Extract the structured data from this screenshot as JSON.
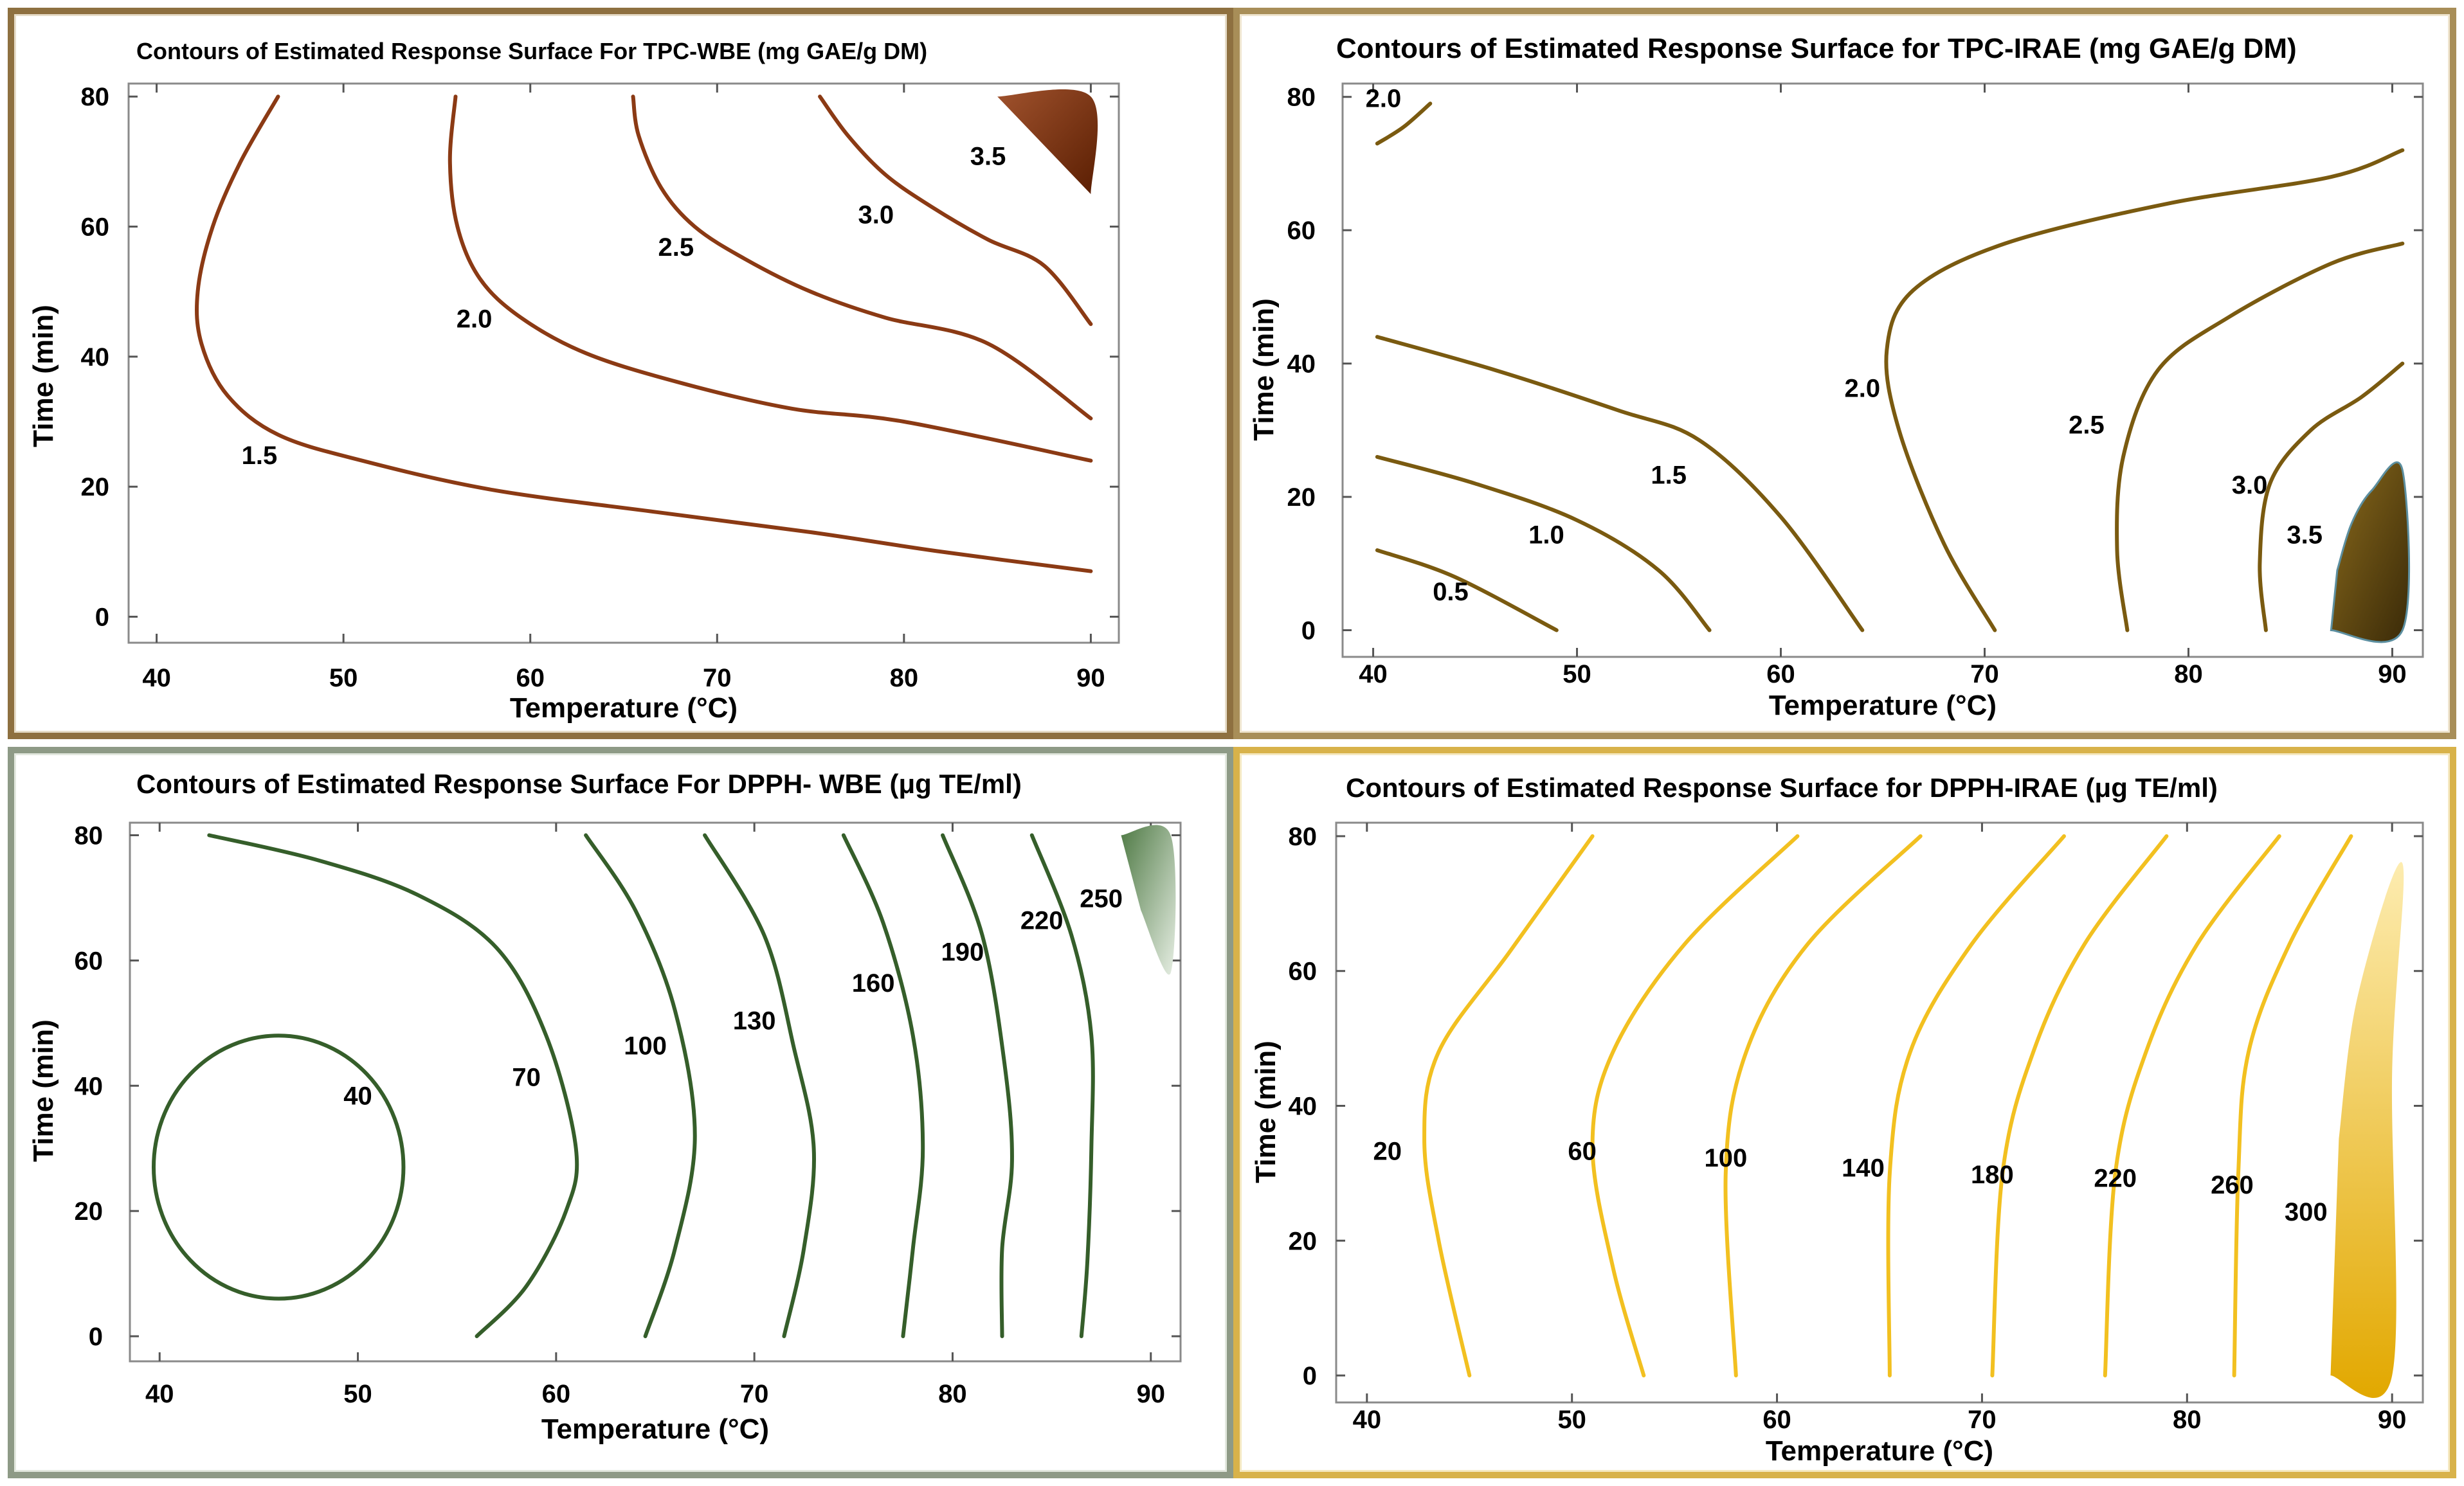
{
  "chart_data": [
    {
      "type": "contour",
      "title": "Contours of Estimated Response Surface For TPC-WBE (mg GAE/g DM)",
      "xlabel": "Temperature (°C)",
      "ylabel": "Time (min)",
      "xlim": [
        38.5,
        91.5
      ],
      "ylim": [
        -4,
        82
      ],
      "xticks": [
        "40",
        "50",
        "60",
        "70",
        "80",
        "90"
      ],
      "yticks": [
        "0",
        "20",
        "40",
        "60",
        "80"
      ],
      "color": "#8B3A14",
      "fill_colors": [
        "#A0522D",
        "#5A1E02"
      ],
      "region": {
        "label": "3.5",
        "points": [
          [
            85,
            80
          ],
          [
            90,
            80
          ],
          [
            90,
            65
          ]
        ]
      },
      "contours": [
        {
          "label": "1.5",
          "label_at": [
            45.5,
            23.5
          ],
          "points": [
            [
              46.5,
              80
            ],
            [
              44.5,
              70
            ],
            [
              43,
              60
            ],
            [
              42.2,
              50
            ],
            [
              42.4,
              42
            ],
            [
              43.8,
              34
            ],
            [
              46.5,
              28
            ],
            [
              51,
              24
            ],
            [
              58,
              19.5
            ],
            [
              67,
              16
            ],
            [
              75,
              13
            ],
            [
              82,
              10
            ],
            [
              90,
              7
            ]
          ]
        },
        {
          "label": "2.0",
          "label_at": [
            57,
            44.5
          ],
          "points": [
            [
              56,
              80
            ],
            [
              55.7,
              70
            ],
            [
              56.1,
              60
            ],
            [
              57.3,
              52
            ],
            [
              59.5,
              46
            ],
            [
              63,
              40.5
            ],
            [
              68,
              36
            ],
            [
              74,
              32
            ],
            [
              80,
              30
            ],
            [
              90,
              24
            ]
          ]
        },
        {
          "label": "2.5",
          "label_at": [
            67.8,
            55.5
          ],
          "points": [
            [
              65.5,
              80
            ],
            [
              65.8,
              74
            ],
            [
              67,
              66
            ],
            [
              68.8,
              60
            ],
            [
              71.5,
              55
            ],
            [
              75,
              50
            ],
            [
              79,
              46
            ],
            [
              84.5,
              42
            ],
            [
              90,
              30.5
            ]
          ]
        },
        {
          "label": "3.0",
          "label_at": [
            78.5,
            60.5
          ],
          "points": [
            [
              75.5,
              80
            ],
            [
              77,
              74
            ],
            [
              79,
              68
            ],
            [
              81.5,
              63
            ],
            [
              84.5,
              58
            ],
            [
              87.5,
              54
            ],
            [
              90,
              45
            ]
          ]
        }
      ]
    },
    {
      "type": "contour",
      "title": "Contours of Estimated Response Surface for TPC-IRAE (mg GAE/g DM)",
      "xlabel": "Temperature (°C)",
      "ylabel": "Time (min)",
      "xlim": [
        38.5,
        91.5
      ],
      "ylim": [
        -4,
        82
      ],
      "xticks": [
        "40",
        "50",
        "60",
        "70",
        "80",
        "90"
      ],
      "yticks": [
        "0",
        "20",
        "40",
        "60",
        "80"
      ],
      "color": "#7A5A10",
      "fill_colors": [
        "#8A6A1C",
        "#3A2A08"
      ],
      "region": {
        "label": "3.5",
        "points": [
          [
            87,
            0
          ],
          [
            90.5,
            0
          ],
          [
            90.5,
            24
          ],
          [
            89,
            21
          ],
          [
            88,
            16
          ],
          [
            87.3,
            9
          ]
        ]
      },
      "contours": [
        {
          "label": "2.0",
          "label_at": [
            40.5,
            78.5
          ],
          "points": [
            [
              40.2,
              73
            ],
            [
              41.5,
              75.5
            ],
            [
              42.8,
              79
            ]
          ]
        },
        {
          "label": "0.5",
          "label_at": [
            43.8,
            4.5
          ],
          "points": [
            [
              40.2,
              12
            ],
            [
              44,
              8
            ],
            [
              49,
              0
            ]
          ]
        },
        {
          "label": "1.0",
          "label_at": [
            48.5,
            13
          ],
          "points": [
            [
              40.2,
              26
            ],
            [
              45,
              22
            ],
            [
              50,
              16.5
            ],
            [
              54,
              9
            ],
            [
              56.5,
              0
            ]
          ]
        },
        {
          "label": "1.5",
          "label_at": [
            54.5,
            22
          ],
          "points": [
            [
              40.2,
              44
            ],
            [
              46,
              39
            ],
            [
              52,
              33
            ],
            [
              56,
              28.5
            ],
            [
              60,
              17
            ],
            [
              64,
              0
            ]
          ]
        },
        {
          "label": "2.0",
          "label_at": [
            64,
            35
          ],
          "points": [
            [
              70.5,
              0
            ],
            [
              68,
              13
            ],
            [
              65.8,
              30
            ],
            [
              65.2,
              42
            ],
            [
              66.5,
              51
            ],
            [
              71,
              58
            ],
            [
              79,
              64
            ],
            [
              87,
              68
            ],
            [
              90.5,
              72
            ]
          ]
        },
        {
          "label": "2.5",
          "label_at": [
            75,
            29.5
          ],
          "points": [
            [
              77,
              0
            ],
            [
              76.5,
              12
            ],
            [
              76.8,
              26
            ],
            [
              78.5,
              39
            ],
            [
              82,
              47
            ],
            [
              87,
              55
            ],
            [
              90.5,
              58
            ]
          ]
        },
        {
          "label": "3.0",
          "label_at": [
            83,
            20.5
          ],
          "points": [
            [
              83.8,
              0
            ],
            [
              83.5,
              10
            ],
            [
              84,
              22
            ],
            [
              86,
              30
            ],
            [
              88.5,
              35
            ],
            [
              90.5,
              40
            ]
          ]
        }
      ]
    },
    {
      "type": "contour",
      "title": "Contours of Estimated Response Surface For DPPH- WBE (μg TE/ml)",
      "xlabel": "Temperature (°C)",
      "ylabel": "Time (min)",
      "xlim": [
        38.5,
        91.5
      ],
      "ylim": [
        -4,
        82
      ],
      "xticks": [
        "40",
        "50",
        "60",
        "70",
        "80",
        "90"
      ],
      "yticks": [
        "0",
        "20",
        "40",
        "60",
        "80"
      ],
      "color": "#355E2A",
      "fill_colors": [
        "#4F7A45",
        "#E6EEE3"
      ],
      "region": {
        "label": "250",
        "points": [
          [
            88.5,
            80
          ],
          [
            91,
            80
          ],
          [
            91,
            58
          ],
          [
            89.5,
            68
          ]
        ]
      },
      "circle": {
        "label": "40",
        "label_at": [
          50,
          37
        ],
        "center": [
          46,
          27
        ],
        "rx": 6.3,
        "ry": 21
      },
      "contours": [
        {
          "label": "70",
          "label_at": [
            58.5,
            40
          ],
          "points": [
            [
              42.5,
              80
            ],
            [
              48,
              76
            ],
            [
              53,
              70.5
            ],
            [
              57,
              62
            ],
            [
              59.5,
              48
            ],
            [
              61,
              30
            ],
            [
              60.5,
              20
            ],
            [
              58.5,
              8
            ],
            [
              56,
              0
            ]
          ]
        },
        {
          "label": "100",
          "label_at": [
            64.5,
            45
          ],
          "points": [
            [
              61.5,
              80
            ],
            [
              64,
              68
            ],
            [
              66,
              52
            ],
            [
              67,
              32
            ],
            [
              66,
              14
            ],
            [
              64.5,
              0
            ]
          ]
        },
        {
          "label": "130",
          "label_at": [
            70,
            49
          ],
          "points": [
            [
              67.5,
              80
            ],
            [
              70.5,
              64
            ],
            [
              72,
              46
            ],
            [
              73,
              30
            ],
            [
              72.5,
              14
            ],
            [
              71.5,
              0
            ]
          ]
        },
        {
          "label": "160",
          "label_at": [
            76,
            55
          ],
          "points": [
            [
              74.5,
              80
            ],
            [
              76.5,
              66
            ],
            [
              78,
              48
            ],
            [
              78.5,
              30
            ],
            [
              78,
              14
            ],
            [
              77.5,
              0
            ]
          ]
        },
        {
          "label": "190",
          "label_at": [
            80.5,
            60
          ],
          "points": [
            [
              79.5,
              80
            ],
            [
              81.5,
              64
            ],
            [
              82.6,
              44
            ],
            [
              83,
              28
            ],
            [
              82.5,
              14
            ],
            [
              82.5,
              0
            ]
          ]
        },
        {
          "label": "220",
          "label_at": [
            84.5,
            65
          ],
          "points": [
            [
              84,
              80
            ],
            [
              86,
              64
            ],
            [
              87,
              48
            ],
            [
              87,
              30
            ],
            [
              86.8,
              12
            ],
            [
              86.5,
              0
            ]
          ]
        }
      ]
    },
    {
      "type": "contour",
      "title": "Contours of Estimated Response Surface for DPPH-IRAE (μg TE/ml)",
      "xlabel": "Temperature (°C)",
      "ylabel": "Time (min)",
      "xlim": [
        38.5,
        91.5
      ],
      "ylim": [
        -4,
        82
      ],
      "xticks": [
        "40",
        "50",
        "60",
        "70",
        "80",
        "90"
      ],
      "yticks": [
        "0",
        "20",
        "40",
        "60",
        "80"
      ],
      "color": "#F2C020",
      "fill_colors": [
        "#FDECB0",
        "#E2A800"
      ],
      "region": {
        "label": "300",
        "points": [
          [
            87,
            0
          ],
          [
            90,
            0
          ],
          [
            90,
            45
          ],
          [
            90.5,
            76
          ],
          [
            88.3,
            56
          ],
          [
            87.4,
            35
          ]
        ]
      },
      "contours": [
        {
          "label": "20",
          "label_at": [
            41,
            32
          ],
          "points": [
            [
              51,
              80
            ],
            [
              47,
              63
            ],
            [
              43.5,
              48
            ],
            [
              42.8,
              35
            ],
            [
              43.5,
              20
            ],
            [
              45,
              0
            ]
          ]
        },
        {
          "label": "60",
          "label_at": [
            50.5,
            32
          ],
          "points": [
            [
              61,
              80
            ],
            [
              55.5,
              64
            ],
            [
              52,
              48
            ],
            [
              51,
              34
            ],
            [
              52,
              16
            ],
            [
              53.5,
              0
            ]
          ]
        },
        {
          "label": "100",
          "label_at": [
            57.5,
            31
          ],
          "points": [
            [
              67,
              80
            ],
            [
              61.5,
              64
            ],
            [
              58.5,
              48
            ],
            [
              57.5,
              30
            ],
            [
              58,
              0
            ]
          ]
        },
        {
          "label": "140",
          "label_at": [
            64.2,
            29.5
          ],
          "points": [
            [
              74,
              80
            ],
            [
              69.5,
              64
            ],
            [
              66.5,
              48
            ],
            [
              65.5,
              30
            ],
            [
              65.5,
              0
            ]
          ]
        },
        {
          "label": "180",
          "label_at": [
            70.5,
            28.5
          ],
          "points": [
            [
              79,
              80
            ],
            [
              75,
              64
            ],
            [
              72.5,
              48
            ],
            [
              71,
              30
            ],
            [
              70.5,
              0
            ]
          ]
        },
        {
          "label": "220",
          "label_at": [
            76.5,
            28
          ],
          "points": [
            [
              84.5,
              80
            ],
            [
              80.5,
              64
            ],
            [
              78,
              48
            ],
            [
              76.5,
              30
            ],
            [
              76,
              0
            ]
          ]
        },
        {
          "label": "260",
          "label_at": [
            82.2,
            27
          ],
          "points": [
            [
              88,
              80
            ],
            [
              85,
              64
            ],
            [
              83,
              48
            ],
            [
              82.5,
              30
            ],
            [
              82.3,
              0
            ]
          ]
        }
      ]
    }
  ]
}
